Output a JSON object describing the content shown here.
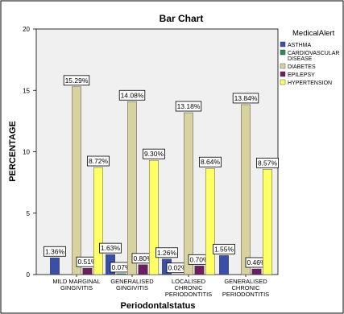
{
  "chart_data": {
    "type": "bar",
    "title": "Bar Chart",
    "xlabel": "Periodontalstatus",
    "ylabel": "PERCENTAGE",
    "ylim": [
      0,
      20
    ],
    "yticks": [
      "0",
      "5",
      "10",
      "15",
      "20"
    ],
    "grid": false,
    "legend_position": "top-right",
    "legend_title": "MedicalAlert",
    "categories": [
      [
        "MILD MARGINAL",
        "GINGIVITIS"
      ],
      [
        "GENERALISED",
        "GINGIVITIS"
      ],
      [
        "LOCALISED",
        "CHRONIC",
        "PERIODONTITIS"
      ],
      [
        "GENERALISED",
        "CHRONIC",
        "PERIODONTITIS"
      ]
    ],
    "series": [
      {
        "name": [
          "ASTHMA"
        ],
        "color": "#3a4fa8",
        "values": [
          1.36,
          1.63,
          1.26,
          1.55
        ],
        "labels": [
          "1.36%",
          "1.63%",
          "1.26%",
          "1.55%"
        ]
      },
      {
        "name": [
          "CARDIOVASCULAR",
          "DISEASE"
        ],
        "color": "#2e8b57",
        "values": [
          0,
          0.07,
          0.02,
          0
        ],
        "labels": [
          "",
          "0.07%",
          "0.02%",
          ""
        ]
      },
      {
        "name": [
          "DIABETES"
        ],
        "color": "#d8d2a0",
        "values": [
          15.29,
          14.08,
          13.18,
          13.84
        ],
        "labels": [
          "15.29%",
          "14.08%",
          "13.18%",
          "13.84%"
        ]
      },
      {
        "name": [
          "EPILEPSY"
        ],
        "color": "#6b1f5e",
        "values": [
          0.51,
          0.8,
          0.7,
          0.46
        ],
        "labels": [
          "0.51%",
          "0.80%",
          "0.70%",
          "0.46%"
        ]
      },
      {
        "name": [
          "HYPERTENSION"
        ],
        "color": "#ffff66",
        "values": [
          8.72,
          9.3,
          8.64,
          8.57
        ],
        "labels": [
          "8.72%",
          "9.30%",
          "8.64%",
          "8.57%"
        ]
      }
    ]
  }
}
